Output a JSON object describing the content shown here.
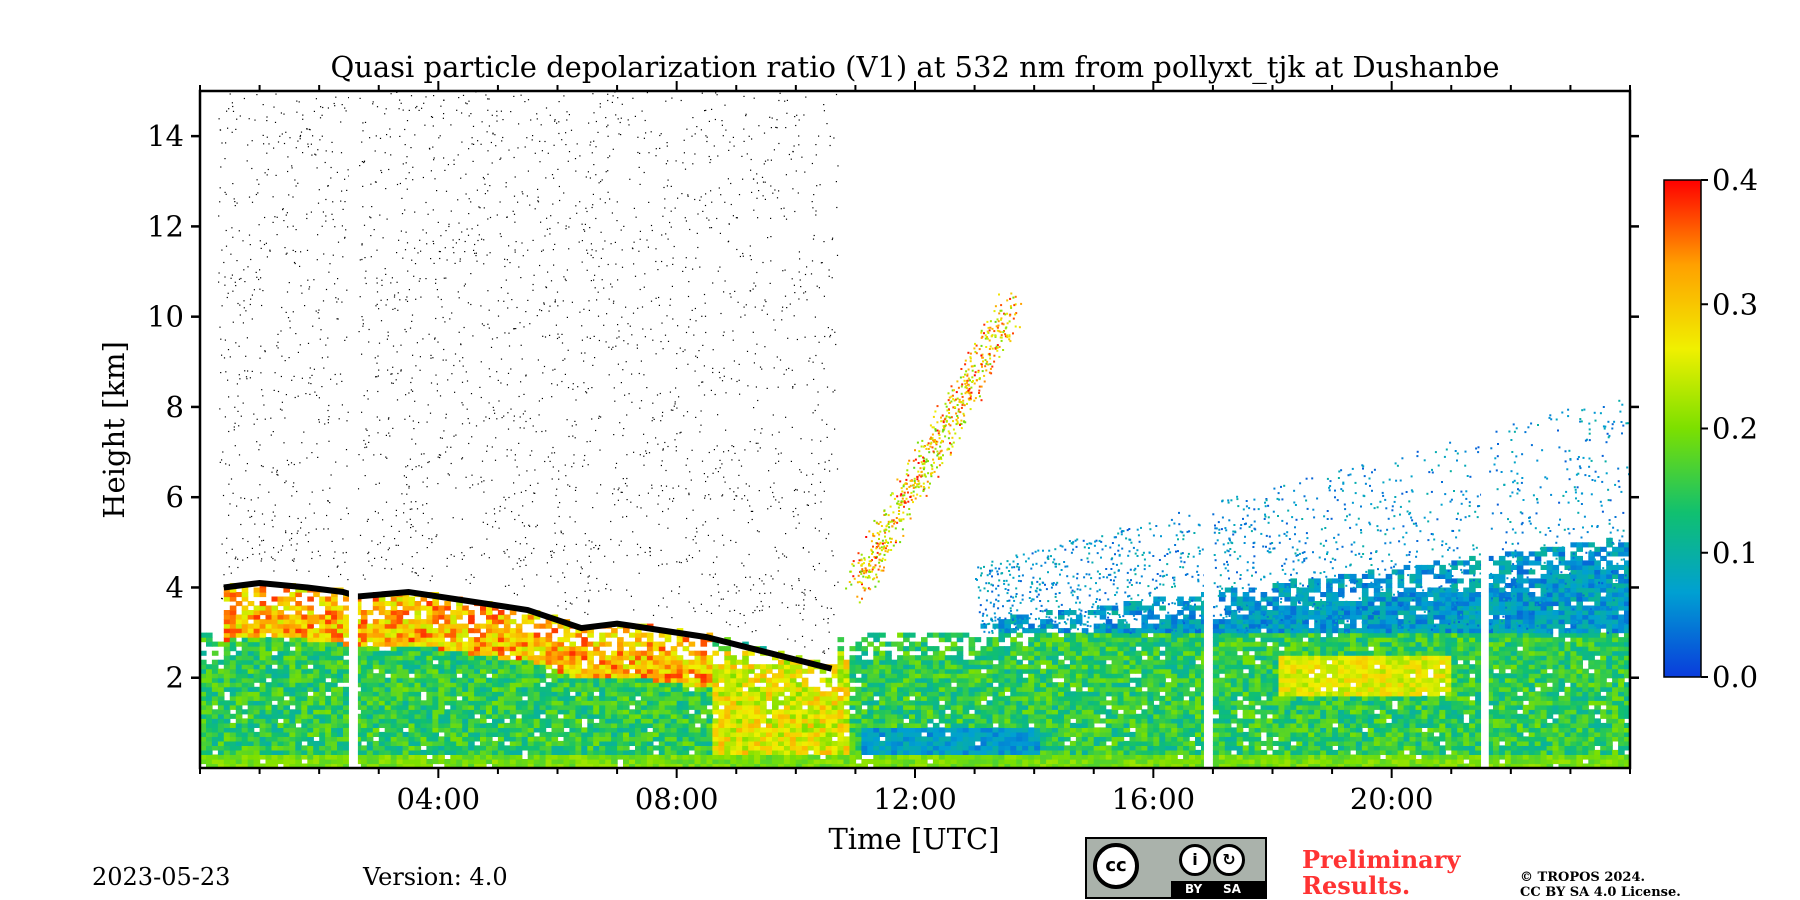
{
  "chart_data": {
    "type": "heatmap",
    "title": "Quasi particle depolarization ratio (V1) at 532 nm from pollyxt_tjk at Dushanbe",
    "xlabel": "Time [UTC]",
    "ylabel": "Height [km]",
    "xlim": [
      0,
      24
    ],
    "ylim": [
      0,
      15
    ],
    "x_ticks": [
      4,
      8,
      12,
      16,
      20
    ],
    "x_tick_labels": [
      "04:00",
      "08:00",
      "12:00",
      "16:00",
      "20:00"
    ],
    "y_ticks": [
      2,
      4,
      6,
      8,
      10,
      12,
      14
    ],
    "y_tick_labels": [
      "2",
      "4",
      "6",
      "8",
      "10",
      "12",
      "14"
    ],
    "colorbar": {
      "min": 0.0,
      "max": 0.4,
      "ticks": [
        0.0,
        0.1,
        0.2,
        0.3,
        0.4
      ],
      "tick_labels": [
        "0.0",
        "0.1",
        "0.2",
        "0.3",
        "0.4"
      ],
      "colors": [
        "#0a3cdc",
        "#00a0d2",
        "#10c070",
        "#7ce000",
        "#f0f000",
        "#ffa000",
        "#ff0000"
      ]
    },
    "data_gaps_utc": [
      [
        2.5,
        2.65
      ],
      [
        16.85,
        16.98
      ],
      [
        21.5,
        21.63
      ]
    ],
    "cloud_base_km": [
      [
        0.4,
        4.0
      ],
      [
        1.0,
        4.1
      ],
      [
        1.8,
        4.0
      ],
      [
        2.4,
        3.9
      ],
      [
        2.65,
        3.8
      ],
      [
        3.5,
        3.9
      ],
      [
        4.5,
        3.7
      ],
      [
        5.5,
        3.5
      ],
      [
        6.4,
        3.1
      ],
      [
        7.0,
        3.2
      ],
      [
        8.0,
        3.0
      ],
      [
        8.5,
        2.9
      ],
      [
        10.0,
        2.4
      ],
      [
        10.6,
        2.2
      ]
    ],
    "regions": [
      {
        "name": "boundary layer aerosol",
        "x": [
          0,
          24
        ],
        "y": [
          0,
          2.5
        ],
        "value": 0.15
      },
      {
        "name": "dust near cloud",
        "x": [
          0,
          8.5
        ],
        "y": [
          2.5,
          4.0
        ],
        "value": 0.3
      },
      {
        "name": "cirrus ascending",
        "x": [
          11.0,
          13.5
        ],
        "y": [
          4.0,
          10.5
        ],
        "value": 0.3
      },
      {
        "name": "evening aerosol layer",
        "x": [
          13,
          24
        ],
        "y": [
          2.5,
          5.5
        ],
        "value": 0.08
      },
      {
        "name": "elevated dust",
        "x": [
          18,
          21
        ],
        "y": [
          1.8,
          2.4
        ],
        "value": 0.25
      }
    ]
  },
  "footer": {
    "date": "2023-05-23",
    "version": "Version: 4.0",
    "preliminary_line1": "Preliminary",
    "preliminary_line2": "Results.",
    "copyright_line1": "© TROPOS 2024.",
    "copyright_line2": "CC BY SA 4.0 License.",
    "license_by": "BY",
    "license_sa": "SA",
    "license_cc": "cc"
  }
}
